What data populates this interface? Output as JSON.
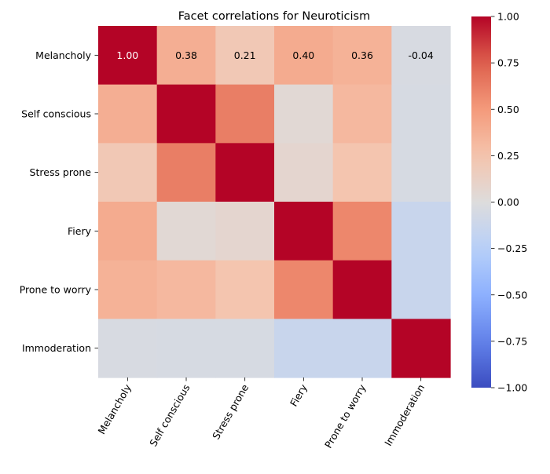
{
  "chart_data": {
    "type": "heatmap",
    "title": "Facet correlations for Neuroticism",
    "xlabel": "",
    "ylabel": "",
    "rows": [
      "Melancholy",
      "Self conscious",
      "Stress prone",
      "Fiery",
      "Prone to worry",
      "Immoderation"
    ],
    "columns": [
      "Melancholy",
      "Self conscious",
      "Stress prone",
      "Fiery",
      "Prone to worry",
      "Immoderation"
    ],
    "values": [
      [
        1.0,
        0.38,
        0.21,
        0.4,
        0.36,
        -0.04
      ],
      [
        0.38,
        1.0,
        0.62,
        0.04,
        0.32,
        -0.05
      ],
      [
        0.21,
        0.62,
        1.0,
        0.07,
        0.24,
        -0.05
      ],
      [
        0.4,
        0.04,
        0.07,
        1.0,
        0.58,
        -0.14
      ],
      [
        0.36,
        0.32,
        0.24,
        0.58,
        1.0,
        -0.14
      ],
      [
        -0.04,
        -0.05,
        -0.05,
        -0.14,
        -0.14,
        1.0
      ]
    ],
    "annotated_row": 0,
    "annotation_labels": [
      "1.00",
      "0.38",
      "0.21",
      "0.40",
      "0.36",
      "-0.04"
    ],
    "colormap": "coolwarm",
    "vmin": -1.0,
    "vmax": 1.0,
    "colorbar_ticks": [
      "1.00",
      "0.75",
      "0.50",
      "0.25",
      "0.00",
      "−0.25",
      "−0.50",
      "−0.75",
      "−1.00"
    ],
    "colorbar_tick_values": [
      1.0,
      0.75,
      0.5,
      0.25,
      0.0,
      -0.25,
      -0.5,
      -0.75,
      -1.0
    ],
    "x_tick_rotation_deg": 60,
    "grid": false
  }
}
